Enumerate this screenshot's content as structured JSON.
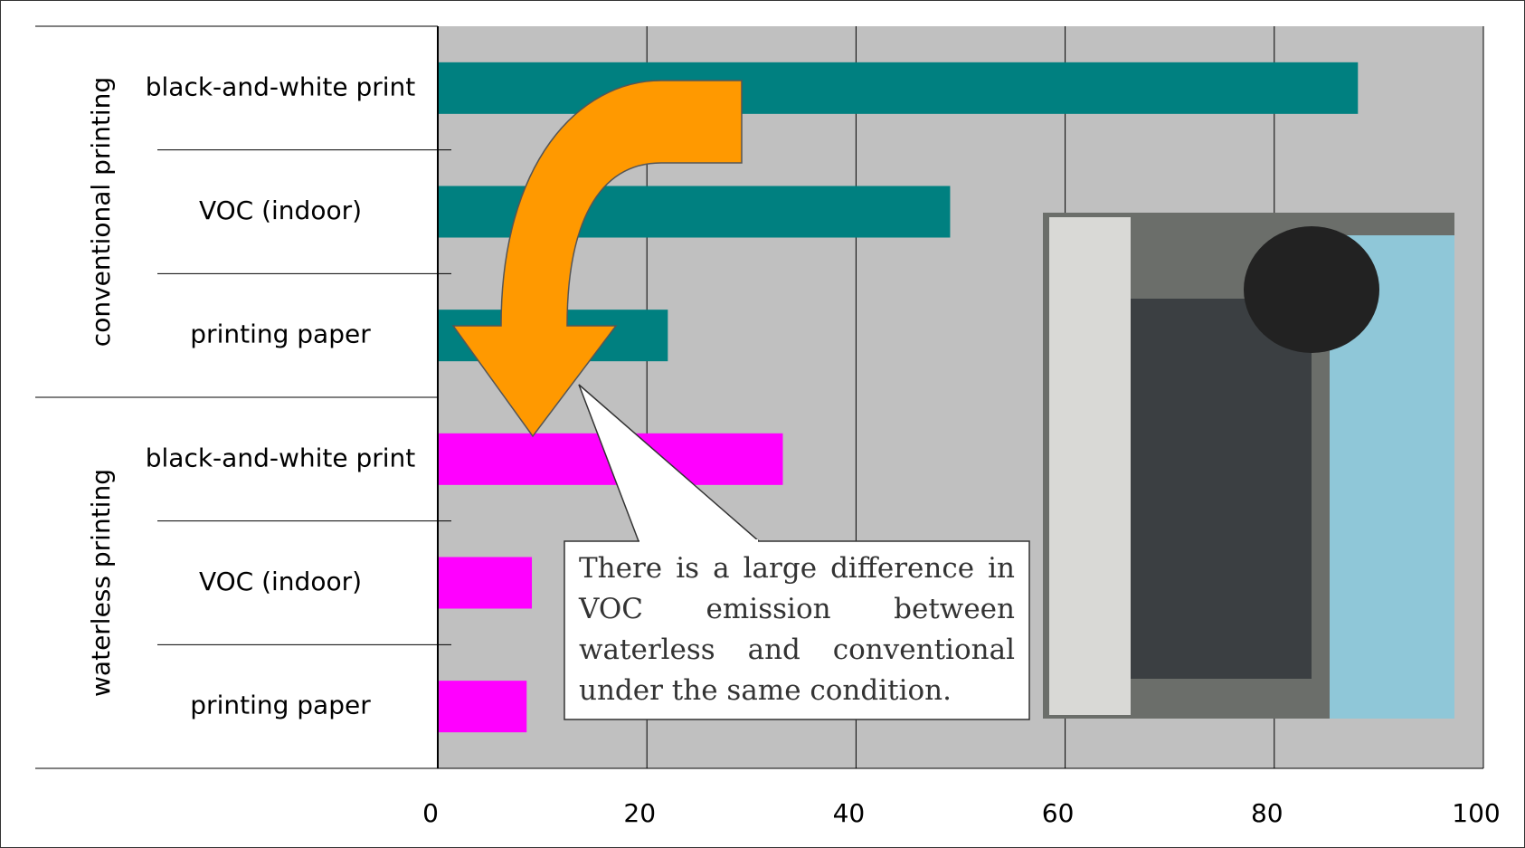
{
  "chart_data": {
    "type": "bar",
    "series": [
      {
        "name": "conventional printing",
        "color": "#008080",
        "categories": [
          "black-and-white print",
          "VOC (indoor)",
          "printing paper"
        ],
        "values": [
          88,
          49,
          22
        ]
      },
      {
        "name": "waterless printing",
        "color": "#ff00ff",
        "categories": [
          "black-and-white print",
          "VOC (indoor)",
          "printing paper"
        ],
        "values": [
          33,
          9,
          8.5
        ]
      }
    ],
    "xlim": [
      0,
      100
    ],
    "xticks": [
      0,
      20,
      40,
      60,
      80,
      100
    ],
    "grid": true,
    "annotation": "There is a large difference in VOC emission between waterless and conventional under the same condition."
  }
}
